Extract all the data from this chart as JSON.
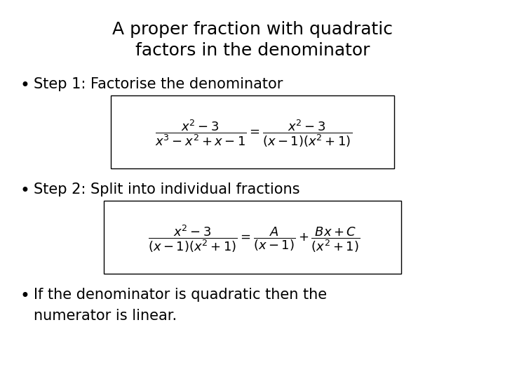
{
  "title_line1": "A proper fraction with quadratic",
  "title_line2": "factors in the denominator",
  "bullet1_text": "Step 1: Factorise the denominator",
  "bullet2_text": "Step 2: Split into individual fractions",
  "bullet3_line1": "If the denominator is quadratic then the",
  "bullet3_line2": "numerator is linear.",
  "bg_color": "#ffffff",
  "text_color": "#000000",
  "box_color": "#ffffff",
  "box_edge_color": "#000000",
  "title_fontsize": 18,
  "bullet_fontsize": 15,
  "eq_fontsize": 13
}
